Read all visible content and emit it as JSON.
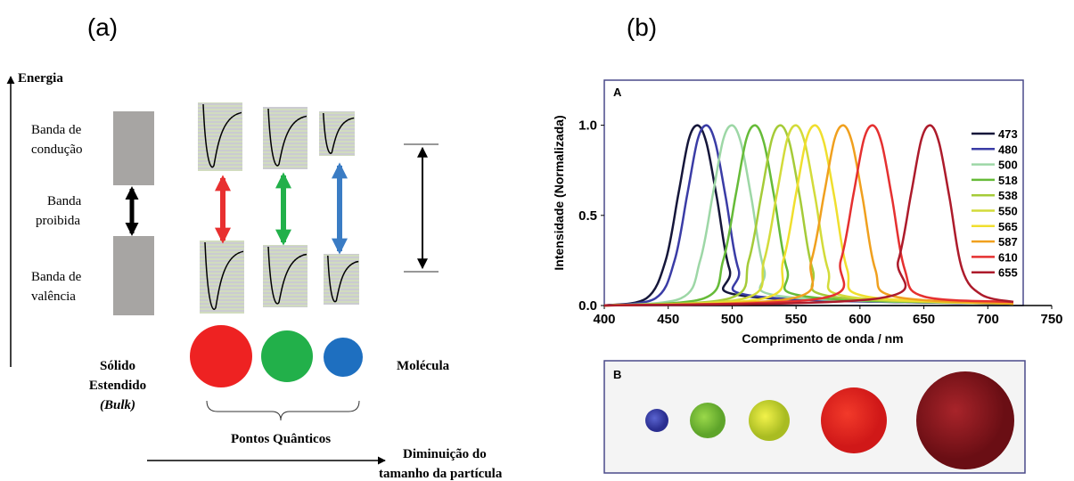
{
  "panel_a": {
    "label": "(a)",
    "energy_axis": "Energia",
    "conduction_band": [
      "Banda de",
      "condução"
    ],
    "band_gap": [
      "Banda",
      "proibida"
    ],
    "valence_band": [
      "Banda de",
      "valência"
    ],
    "bulk": [
      "Sólido",
      "Estendido",
      "(Bulk)"
    ],
    "molecule": "Molécula",
    "quantum_dots": "Pontos Quânticos",
    "size_axis": [
      "Diminuição do",
      "tamanho da partícula"
    ]
  },
  "panel_b": {
    "label": "(b)",
    "inset_label": "B"
  },
  "chart_data": {
    "type": "line",
    "panel_label": "A",
    "x_label": "Comprimento de onda / nm",
    "y_label": "Intensidade  (Normalizada)",
    "xlim": [
      400,
      750
    ],
    "xticks": [
      400,
      450,
      500,
      550,
      600,
      650,
      700,
      750
    ],
    "ylim": [
      0,
      1.25
    ],
    "yticks": [
      {
        "value": 0,
        "label": "0.0"
      },
      {
        "value": 0.5,
        "label": "0.5"
      },
      {
        "value": 1,
        "label": "1.0"
      }
    ],
    "series": [
      {
        "name": "473",
        "color": "#15163a",
        "x": [
          400,
          433,
          448,
          458,
          466,
          473,
          480,
          488,
          498,
          513,
          720
        ],
        "values": [
          0,
          0.04,
          0.25,
          0.62,
          0.92,
          1,
          0.9,
          0.6,
          0.2,
          0.05,
          0.01
        ]
      },
      {
        "name": "480",
        "color": "#3a3ca6",
        "x": [
          400,
          440,
          455,
          465,
          473,
          480,
          487,
          495,
          505,
          520,
          720
        ],
        "values": [
          0,
          0.04,
          0.25,
          0.62,
          0.92,
          1,
          0.9,
          0.6,
          0.2,
          0.05,
          0.01
        ]
      },
      {
        "name": "500",
        "color": "#9dd7a6",
        "x": [
          400,
          460,
          475,
          485,
          493,
          500,
          507,
          515,
          525,
          540,
          720
        ],
        "values": [
          0,
          0.04,
          0.25,
          0.62,
          0.92,
          1,
          0.9,
          0.6,
          0.2,
          0.05,
          0.01
        ]
      },
      {
        "name": "518",
        "color": "#66bb38",
        "x": [
          400,
          478,
          493,
          503,
          511,
          518,
          525,
          533,
          543,
          558,
          720
        ],
        "values": [
          0,
          0.04,
          0.25,
          0.62,
          0.92,
          1,
          0.9,
          0.6,
          0.2,
          0.05,
          0.01
        ]
      },
      {
        "name": "538",
        "color": "#a5cb38",
        "x": [
          400,
          498,
          513,
          523,
          531,
          538,
          545,
          553,
          563,
          578,
          720
        ],
        "values": [
          0,
          0.04,
          0.25,
          0.62,
          0.92,
          1,
          0.9,
          0.6,
          0.2,
          0.05,
          0.01
        ]
      },
      {
        "name": "550",
        "color": "#d3db3a",
        "x": [
          400,
          510,
          525,
          535,
          543,
          550,
          557,
          565,
          575,
          590,
          720
        ],
        "values": [
          0,
          0.04,
          0.25,
          0.62,
          0.92,
          1,
          0.9,
          0.6,
          0.2,
          0.05,
          0.01
        ]
      },
      {
        "name": "565",
        "color": "#f0df2e",
        "x": [
          400,
          525,
          540,
          550,
          558,
          565,
          572,
          580,
          590,
          605,
          720
        ],
        "values": [
          0,
          0.04,
          0.25,
          0.62,
          0.92,
          1,
          0.9,
          0.6,
          0.2,
          0.05,
          0.01
        ]
      },
      {
        "name": "587",
        "color": "#f0a01e",
        "x": [
          400,
          547,
          562,
          572,
          580,
          587,
          594,
          602,
          612,
          627,
          720
        ],
        "values": [
          0,
          0.04,
          0.25,
          0.62,
          0.92,
          1,
          0.9,
          0.6,
          0.2,
          0.05,
          0.01
        ]
      },
      {
        "name": "610",
        "color": "#e53030",
        "x": [
          400,
          570,
          585,
          595,
          603,
          610,
          617,
          625,
          635,
          650,
          720
        ],
        "values": [
          0,
          0.04,
          0.25,
          0.62,
          0.92,
          1,
          0.9,
          0.6,
          0.2,
          0.05,
          0.02
        ]
      },
      {
        "name": "655",
        "color": "#ad1b2b",
        "x": [
          400,
          615,
          630,
          640,
          648,
          655,
          662,
          670,
          680,
          695,
          720
        ],
        "values": [
          0,
          0.04,
          0.25,
          0.62,
          0.92,
          1,
          0.9,
          0.6,
          0.2,
          0.06,
          0.02
        ]
      }
    ]
  }
}
